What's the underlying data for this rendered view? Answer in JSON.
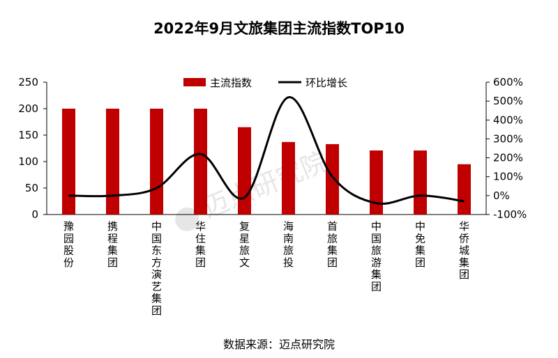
{
  "chart_data": {
    "type": "bar+line",
    "title": "2022年9月文旅集团主流指数TOP10",
    "categories": [
      "豫园股份",
      "携程集团",
      "中国东方演艺集团",
      "华住集团",
      "复星旅文",
      "海南旅投",
      "首旅集团",
      "中国旅游集团",
      "中免集团",
      "华侨城集团"
    ],
    "series": [
      {
        "name": "主流指数",
        "type": "bar",
        "axis": "left",
        "color": "#c00000",
        "values": [
          200,
          200,
          200,
          200,
          165,
          137,
          133,
          121,
          121,
          95
        ]
      },
      {
        "name": "环比增长",
        "type": "line",
        "axis": "right",
        "color": "#000000",
        "values": [
          0,
          0,
          40,
          220,
          -10,
          520,
          100,
          -40,
          0,
          -30
        ]
      }
    ],
    "left_axis": {
      "min": 0,
      "max": 250,
      "step": 50,
      "ticks": [
        "0",
        "50",
        "100",
        "150",
        "200",
        "250"
      ]
    },
    "right_axis": {
      "min": -100,
      "max": 600,
      "step": 100,
      "ticks": [
        "-100%",
        "0%",
        "100%",
        "200%",
        "300%",
        "400%",
        "500%",
        "600%"
      ]
    },
    "legend": {
      "position": "top-center",
      "items": [
        "主流指数",
        "环比增长"
      ]
    },
    "source": "数据来源：迈点研究院",
    "watermark": "迈点研究院"
  }
}
